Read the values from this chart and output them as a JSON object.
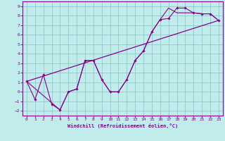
{
  "title": "",
  "xlabel": "Windchill (Refroidissement éolien,°C)",
  "xlim": [
    -0.5,
    23.5
  ],
  "ylim": [
    -2.5,
    9.5
  ],
  "xticks": [
    0,
    1,
    2,
    3,
    4,
    5,
    6,
    7,
    8,
    9,
    10,
    11,
    12,
    13,
    14,
    15,
    16,
    17,
    18,
    19,
    20,
    21,
    22,
    23
  ],
  "yticks": [
    -2,
    -1,
    0,
    1,
    2,
    3,
    4,
    5,
    6,
    7,
    8,
    9
  ],
  "bg_color": "#c0ecec",
  "line_color": "#880088",
  "grid_color": "#90c8c8",
  "line1_x": [
    0,
    1,
    2,
    3,
    4,
    5,
    6,
    7,
    8,
    9,
    10,
    11,
    12,
    13,
    14,
    15,
    16,
    17,
    18,
    19,
    20,
    21,
    22,
    23
  ],
  "line1_y": [
    1.1,
    -0.8,
    1.8,
    -1.3,
    -1.9,
    0.0,
    0.3,
    3.3,
    3.3,
    1.3,
    0.0,
    0.0,
    1.3,
    3.3,
    4.3,
    6.3,
    7.6,
    7.7,
    8.8,
    8.8,
    8.3,
    8.2,
    8.2,
    7.5
  ],
  "line2_x": [
    0,
    23
  ],
  "line2_y": [
    1.1,
    7.5
  ],
  "line3_x": [
    0,
    4,
    5,
    6,
    7,
    8,
    9,
    10,
    11,
    12,
    13,
    14,
    15,
    16,
    17,
    18,
    19,
    20,
    21,
    22,
    23
  ],
  "line3_y": [
    1.1,
    -1.9,
    0.0,
    0.3,
    3.3,
    3.3,
    1.3,
    0.0,
    0.0,
    1.3,
    3.3,
    4.3,
    6.3,
    7.6,
    8.8,
    8.3,
    8.3,
    8.3,
    8.2,
    8.2,
    7.5
  ]
}
